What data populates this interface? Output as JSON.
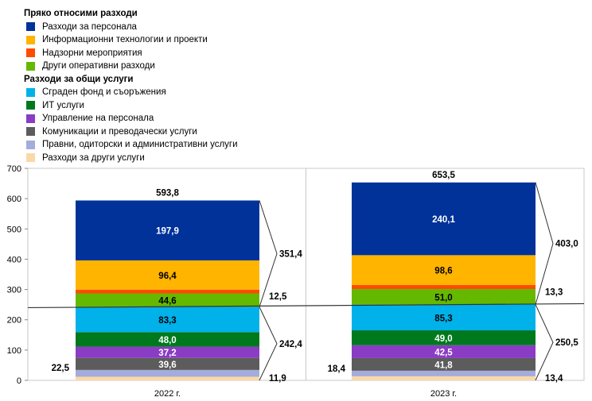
{
  "legend": {
    "group1_title": "Пряко относими разходи",
    "group2_title": "Разходи за общи услуги"
  },
  "chart_data": {
    "type": "bar",
    "stacked": true,
    "categories": [
      "2022 г.",
      "2023 г."
    ],
    "ylim": [
      0,
      700
    ],
    "yticks": [
      0,
      100,
      200,
      300,
      400,
      500,
      600,
      700
    ],
    "grid": true,
    "legend_position": "top-left",
    "series": [
      {
        "name": "Разходи за други услуги",
        "group": "Разходи за общи услуги",
        "color": "#FAD9A8",
        "values": [
          11.9,
          13.4
        ],
        "value_labels": [
          "",
          ""
        ]
      },
      {
        "name": "Правни, одиторски и административни услуги",
        "group": "Разходи за общи услуги",
        "color": "#A3ACDA",
        "values": [
          22.5,
          18.4
        ],
        "value_labels": [
          "22,5",
          "18,4"
        ]
      },
      {
        "name": "Комуникации и преводачески услуги",
        "group": "Разходи за общи услуги",
        "color": "#5C5C5C",
        "values": [
          39.6,
          41.8
        ],
        "value_labels": [
          "39,6",
          "41,8"
        ]
      },
      {
        "name": "Управление на персонала",
        "group": "Разходи за общи услуги",
        "color": "#8A3CC4",
        "values": [
          37.2,
          42.5
        ],
        "value_labels": [
          "37,2",
          "42,5"
        ]
      },
      {
        "name": "ИТ услуги",
        "group": "Разходи за общи услуги",
        "color": "#00791E",
        "values": [
          48.0,
          49.0
        ],
        "value_labels": [
          "48,0",
          "49,0"
        ]
      },
      {
        "name": "Сграден фонд и съоръжения",
        "group": "Разходи за общи услуги",
        "color": "#00B1EA",
        "values": [
          83.3,
          85.3
        ],
        "value_labels": [
          "83,3",
          "85,3"
        ]
      },
      {
        "name": "Други оперативни разходи",
        "group": "Пряко относими разходи",
        "color": "#65B800",
        "values": [
          44.6,
          51.0
        ],
        "value_labels": [
          "44,6",
          "51,0"
        ]
      },
      {
        "name": "Надзорни мероприятия",
        "group": "Пряко относими разходи",
        "color": "#FF4B00",
        "values": [
          12.5,
          13.3
        ],
        "value_labels": [
          "",
          ""
        ]
      },
      {
        "name": "Информационни технологии и проекти",
        "group": "Пряко относими разходи",
        "color": "#FFB400",
        "values": [
          96.4,
          98.6
        ],
        "value_labels": [
          "96,4",
          "98,6"
        ]
      },
      {
        "name": "Разходи за персонала",
        "group": "Пряко относими разходи",
        "color": "#003299",
        "values": [
          197.9,
          240.1
        ],
        "value_labels": [
          "197,9",
          "240,1"
        ]
      }
    ],
    "totals": [
      "593,8",
      "653,5"
    ],
    "side_annotations": [
      {
        "label": "351,4",
        "bracket": [
          "Разходи за персонала",
          "Информационни технологии и проекти",
          "Надзорни мероприятия",
          "Други оперативни разходи"
        ]
      },
      {
        "label": "12,5"
      },
      {
        "label": "242,4",
        "bracket": [
          "Сграден фонд и съоръжения",
          "ИТ услуги",
          "Управление на персонала",
          "Комуникации и преводачески услуги",
          "Правни, одиторски и административни услуги",
          "Разходи за други услуги"
        ]
      },
      {
        "label": "11,9"
      }
    ],
    "side_annotations_2023": [
      {
        "label": "403,0"
      },
      {
        "label": "13,3"
      },
      {
        "label": "250,5"
      },
      {
        "label": "13,4"
      }
    ],
    "divider_value": 240
  }
}
